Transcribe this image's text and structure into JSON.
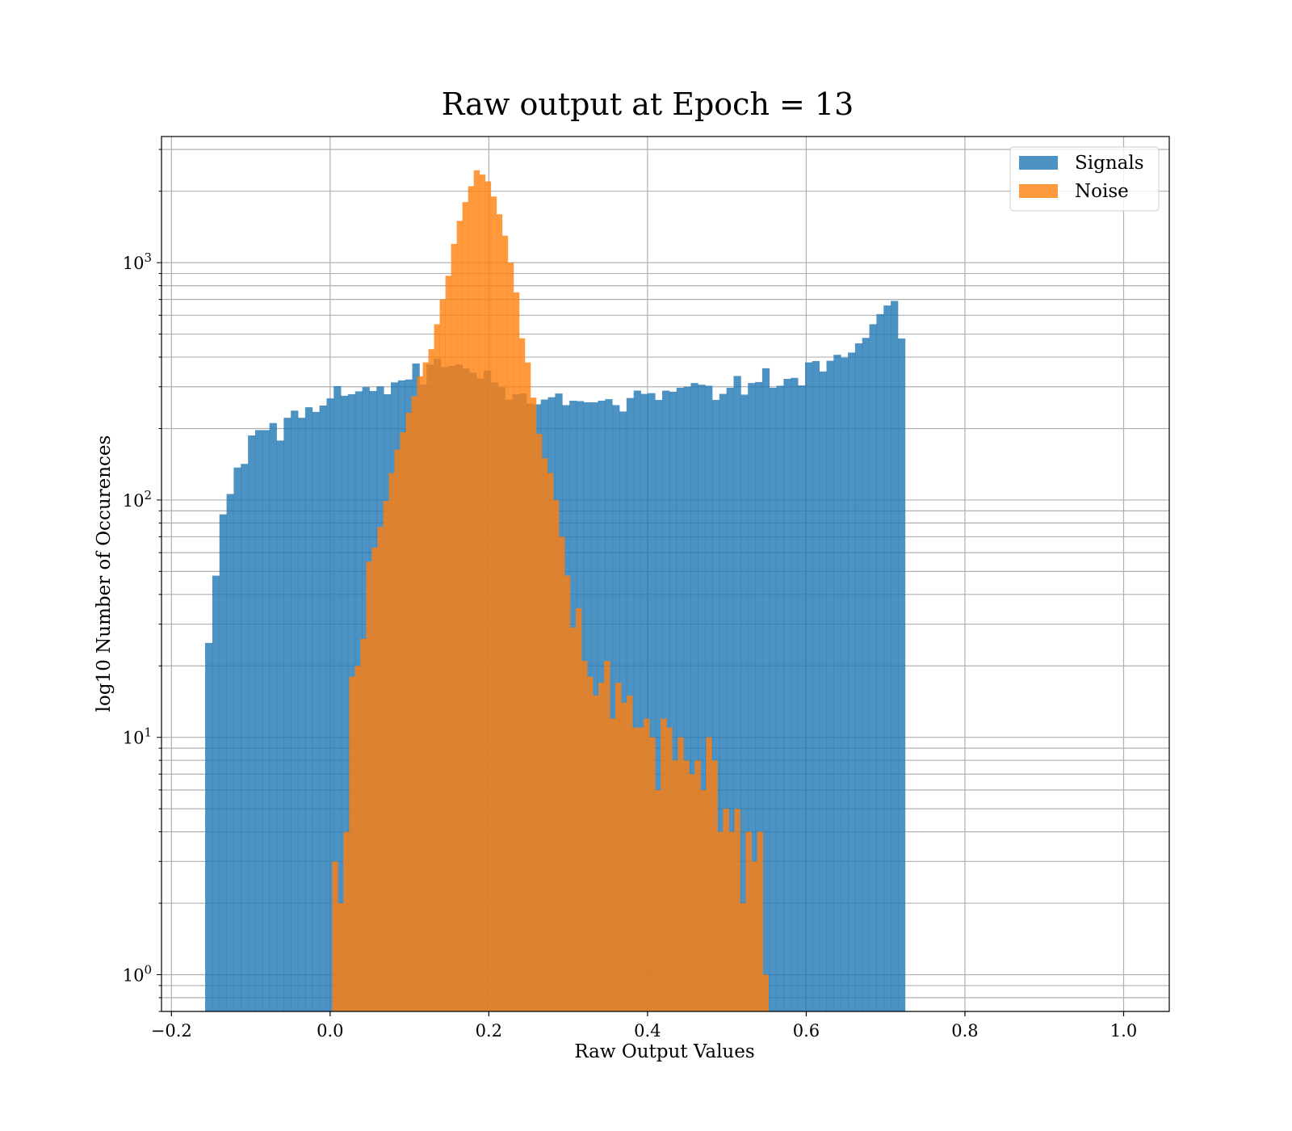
{
  "colors": {
    "signals": "#1f77b4",
    "noise": "#ff7f0e",
    "grid": "#b0b0b0",
    "background": "#ffffff"
  },
  "chart_data": {
    "type": "histogram",
    "title": "Raw output at Epoch = 13",
    "xlabel": "Raw Output Values",
    "ylabel": "log10 Number of Occurences",
    "y_scale": "log",
    "xlim": [
      -0.2125,
      1.0575
    ],
    "ylim": [
      0.7,
      3400
    ],
    "x_ticks": [
      -0.2,
      0.0,
      0.2,
      0.4,
      0.6,
      0.8,
      1.0
    ],
    "x_tick_labels": [
      "−0.2",
      "0.0",
      "0.2",
      "0.4",
      "0.6",
      "0.8",
      "1.0"
    ],
    "y_ticks": [
      1,
      10,
      100,
      1000
    ],
    "y_tick_labels": [
      {
        "base": "10",
        "exp": "0"
      },
      {
        "base": "10",
        "exp": "1"
      },
      {
        "base": "10",
        "exp": "2"
      },
      {
        "base": "10",
        "exp": "3"
      }
    ],
    "grid": true,
    "legend": {
      "position": "top-right"
    },
    "series": [
      {
        "name": "Signals",
        "color": "#1f77b4",
        "opacity": 0.8,
        "bin_start": -0.1575,
        "bin_width": 0.009,
        "counts": [
          25,
          48,
          87,
          106,
          137,
          142,
          187,
          197,
          197,
          211,
          178,
          222,
          238,
          222,
          246,
          235,
          250,
          268,
          302,
          275,
          279,
          287,
          299,
          288,
          301,
          279,
          313,
          319,
          322,
          376,
          307,
          372,
          393,
          363,
          367,
          372,
          358,
          344,
          325,
          351,
          313,
          299,
          265,
          279,
          281,
          255,
          253,
          265,
          271,
          281,
          251,
          262,
          261,
          258,
          258,
          262,
          266,
          251,
          236,
          269,
          289,
          280,
          282,
          264,
          289,
          286,
          297,
          300,
          311,
          306,
          303,
          264,
          280,
          297,
          333,
          278,
          311,
          314,
          359,
          297,
          303,
          324,
          327,
          304,
          380,
          385,
          348,
          386,
          409,
          398,
          418,
          457,
          482,
          550,
          607,
          660,
          690,
          479
        ],
        "max_count": 690
      },
      {
        "name": "Noise",
        "color": "#ff7f0e",
        "opacity": 0.8,
        "bin_start": 0.0025,
        "bin_width": 0.00714,
        "counts": [
          3,
          2,
          4,
          18,
          20,
          26,
          55,
          63,
          77,
          99,
          130,
          163,
          193,
          233,
          274,
          332,
          380,
          432,
          550,
          700,
          880,
          1200,
          1500,
          1800,
          2100,
          2450,
          2350,
          2200,
          1900,
          1600,
          1300,
          1000,
          750,
          480,
          380,
          270,
          190,
          150,
          130,
          100,
          70,
          48,
          29,
          35,
          21,
          18,
          15,
          17,
          21,
          12,
          17,
          14,
          15,
          11,
          11,
          12,
          10,
          6,
          12,
          11,
          8,
          10,
          8,
          7,
          8,
          6,
          10,
          8,
          4,
          5,
          4,
          5,
          2,
          4,
          3,
          4,
          1
        ]
      }
    ]
  }
}
